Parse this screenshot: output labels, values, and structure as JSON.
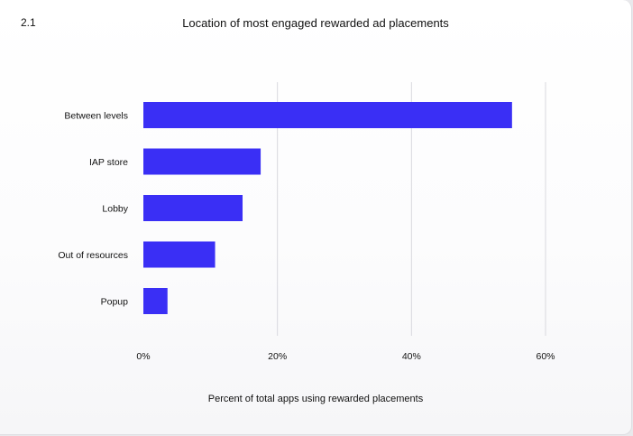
{
  "figure_number": "2.1",
  "chart_data": {
    "type": "bar",
    "orientation": "horizontal",
    "title": "Location of most engaged rewarded ad placements",
    "xlabel": "Percent of total apps using rewarded placements",
    "ylabel": "",
    "categories": [
      "Between levels",
      "IAP store",
      "Lobby",
      "Out of resources",
      "Popup"
    ],
    "values": [
      55,
      17.5,
      14.8,
      10.7,
      3.6
    ],
    "xlim": [
      0,
      60
    ],
    "xticks": [
      0,
      20,
      40,
      60
    ],
    "xtick_labels": [
      "0%",
      "20%",
      "40%",
      "60%"
    ],
    "grid": "vertical",
    "bar_color": "#3a2ff5"
  }
}
